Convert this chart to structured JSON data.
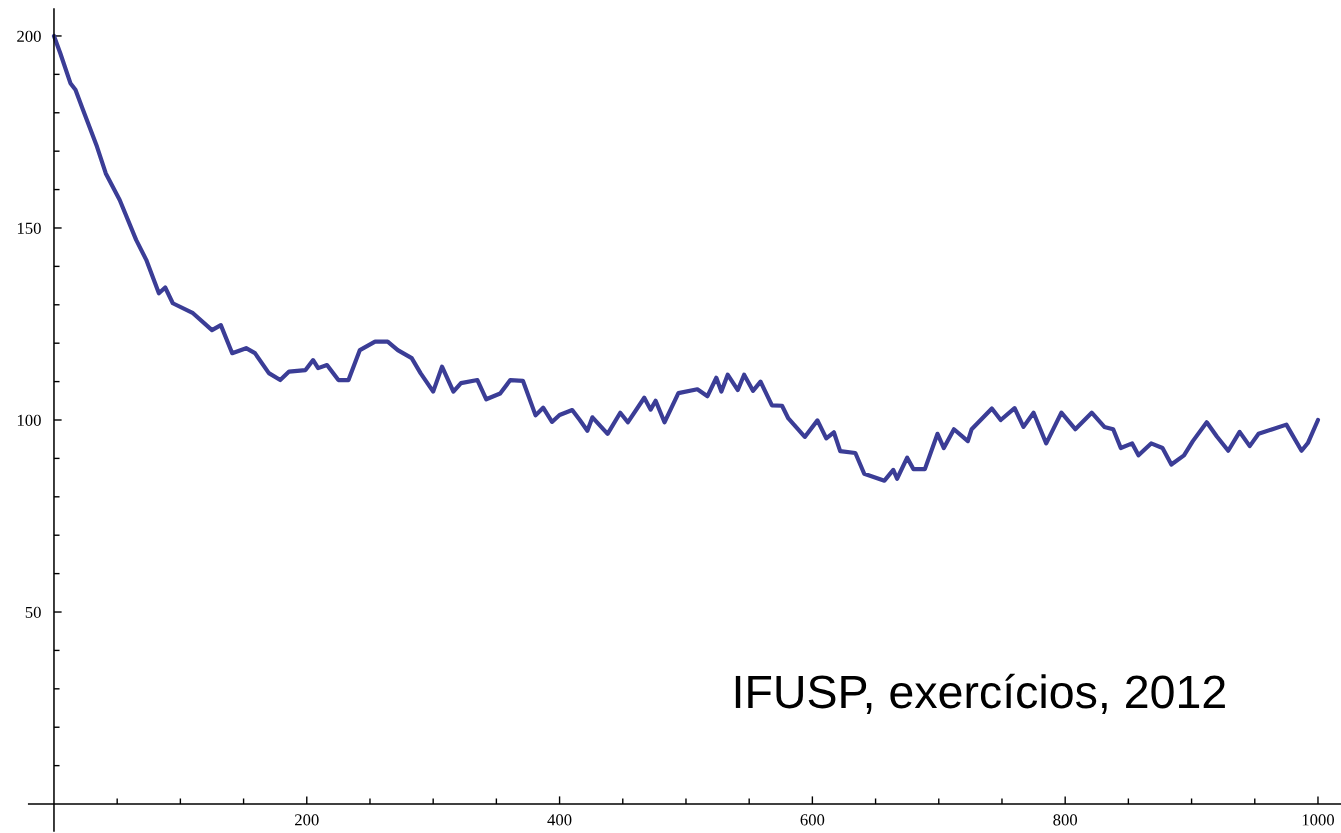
{
  "chart_data": {
    "type": "line",
    "x": [
      0,
      5,
      13,
      17,
      23,
      34,
      41,
      52,
      65,
      73,
      83,
      88,
      94,
      110,
      125,
      132,
      141,
      152,
      159,
      170,
      179,
      186,
      199,
      205,
      209,
      216,
      225,
      233,
      242,
      254,
      264,
      272,
      283,
      290,
      300,
      307,
      316,
      322,
      335,
      342,
      353,
      361,
      371,
      381,
      387,
      394,
      400,
      410,
      416,
      422,
      426,
      438,
      448,
      454,
      467,
      472,
      476,
      483,
      494,
      509,
      517,
      524,
      528,
      533,
      541,
      546,
      553,
      559,
      568,
      576,
      581,
      594,
      604,
      611,
      617,
      622,
      634,
      641,
      657,
      664,
      667,
      675,
      680,
      689,
      699,
      704,
      712,
      723,
      726,
      742,
      749,
      760,
      767,
      775,
      785,
      797,
      808,
      821,
      831,
      838,
      844,
      853,
      858,
      868,
      877,
      884,
      894,
      901,
      912,
      920,
      929,
      938,
      946,
      953,
      964,
      975,
      987,
      992,
      1000
    ],
    "values": [
      200.0,
      195.5,
      187.7,
      186.0,
      180.7,
      171.2,
      164.2,
      157.3,
      146.9,
      141.7,
      133.0,
      134.5,
      130.4,
      127.8,
      123.4,
      124.7,
      117.4,
      118.7,
      117.4,
      112.2,
      110.4,
      112.6,
      113.0,
      115.6,
      113.5,
      114.3,
      110.4,
      110.4,
      118.2,
      120.4,
      120.4,
      118.2,
      116.1,
      112.2,
      107.4,
      113.9,
      107.4,
      109.6,
      110.4,
      105.4,
      106.9,
      110.4,
      110.2,
      101.2,
      103.2,
      99.5,
      101.3,
      102.6,
      100.0,
      97.2,
      100.7,
      96.4,
      101.9,
      99.4,
      105.8,
      102.7,
      105.0,
      99.4,
      107.0,
      108.0,
      106.2,
      111.0,
      107.4,
      111.8,
      107.8,
      111.8,
      107.6,
      110.0,
      103.8,
      103.7,
      100.4,
      95.6,
      99.9,
      95.2,
      96.8,
      91.9,
      91.4,
      86.0,
      84.2,
      87.0,
      84.7,
      90.2,
      87.2,
      87.2,
      96.4,
      92.7,
      97.6,
      94.5,
      97.6,
      103.0,
      100.0,
      103.1,
      98.2,
      101.9,
      93.9,
      101.9,
      97.6,
      101.9,
      98.2,
      97.6,
      92.7,
      93.9,
      90.8,
      93.9,
      92.7,
      88.4,
      90.8,
      94.5,
      99.4,
      95.7,
      92.0,
      96.9,
      93.2,
      96.4,
      97.6,
      98.8,
      92.0,
      94.0,
      100.0
    ],
    "color": "#3b3d96",
    "line_style": "solid",
    "xlim": [
      -20,
      1018
    ],
    "ylim": [
      -7,
      207
    ],
    "xticks": [
      {
        "value": 50,
        "label": null
      },
      {
        "value": 100,
        "label": null
      },
      {
        "value": 150,
        "label": null
      },
      200,
      {
        "value": 250,
        "label": null
      },
      {
        "value": 300,
        "label": null
      },
      {
        "value": 350,
        "label": null
      },
      400,
      {
        "value": 450,
        "label": null
      },
      {
        "value": 500,
        "label": null
      },
      {
        "value": 550,
        "label": null
      },
      600,
      {
        "value": 650,
        "label": null
      },
      {
        "value": 700,
        "label": null
      },
      {
        "value": 750,
        "label": null
      },
      800,
      {
        "value": 850,
        "label": null
      },
      {
        "value": 900,
        "label": null
      },
      {
        "value": 950,
        "label": null
      },
      1000
    ],
    "yticks": [
      {
        "value": 10,
        "label": null
      },
      {
        "value": 20,
        "label": null
      },
      {
        "value": 30,
        "label": null
      },
      {
        "value": 40,
        "label": null
      },
      50,
      {
        "value": 60,
        "label": null
      },
      {
        "value": 70,
        "label": null
      },
      {
        "value": 80,
        "label": null
      },
      {
        "value": 90,
        "label": null
      },
      100,
      {
        "value": 110,
        "label": null
      },
      {
        "value": 120,
        "label": null
      },
      {
        "value": 130,
        "label": null
      },
      {
        "value": 140,
        "label": null
      },
      150,
      {
        "value": 160,
        "label": null
      },
      {
        "value": 170,
        "label": null
      },
      {
        "value": 180,
        "label": null
      },
      {
        "value": 190,
        "label": null
      },
      200
    ],
    "annotations": [
      "IFUSP, exercícios, 2012"
    ]
  }
}
